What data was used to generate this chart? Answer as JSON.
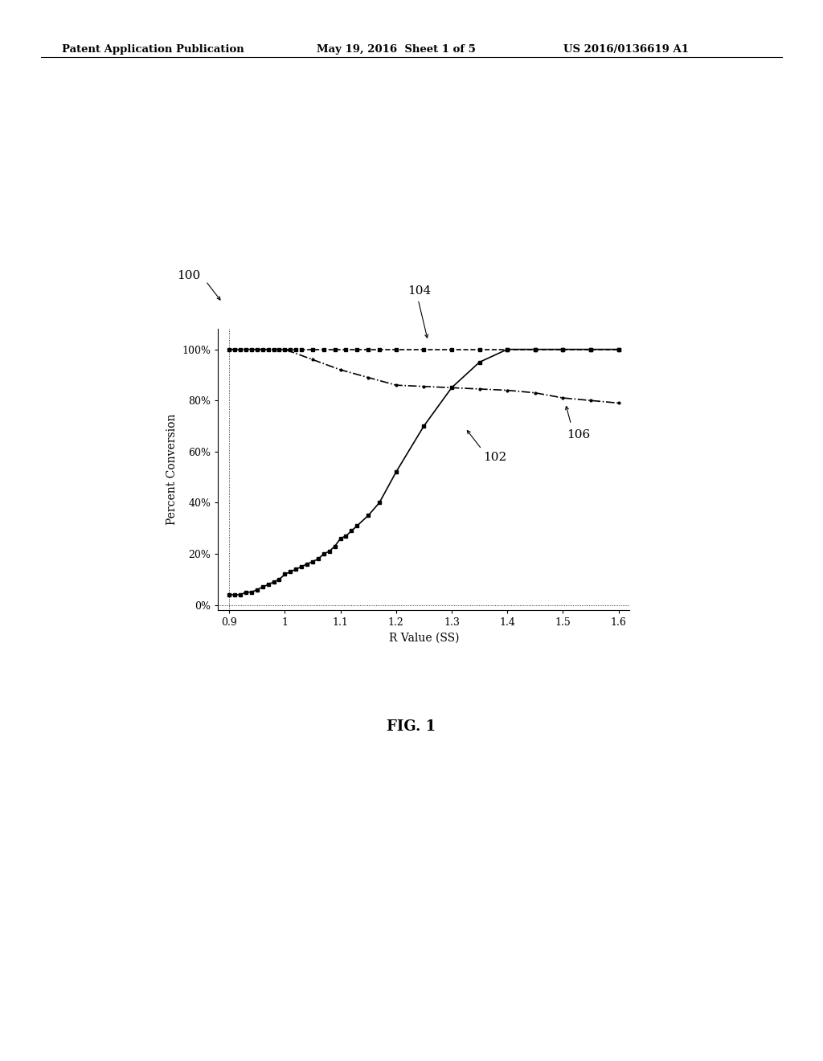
{
  "header_left": "Patent Application Publication",
  "header_center": "May 19, 2016  Sheet 1 of 5",
  "header_right": "US 2016/0136619 A1",
  "xlabel": "R Value (SS)",
  "ylabel": "Percent Conversion",
  "fig_label": "FIG. 1",
  "annotation_100": "100",
  "annotation_102": "—102",
  "annotation_104": "104",
  "annotation_106": "106",
  "yticks": [
    0.0,
    0.2,
    0.4,
    0.6,
    0.8,
    1.0
  ],
  "ytick_labels": [
    "0%",
    "20%",
    "40%",
    "60%",
    "80%",
    "100%"
  ],
  "xticks": [
    0.9,
    1.0,
    1.1,
    1.2,
    1.3,
    1.4,
    1.5,
    1.6
  ],
  "xtick_labels": [
    "0.9",
    "1",
    "1.1",
    "1.2",
    "1.3",
    "1.4",
    "1.5",
    "1.6"
  ],
  "xlim": [
    0.88,
    1.62
  ],
  "ylim": [
    -0.02,
    1.08
  ],
  "line102_x": [
    0.9,
    0.91,
    0.92,
    0.93,
    0.94,
    0.95,
    0.96,
    0.97,
    0.98,
    0.99,
    1.0,
    1.01,
    1.02,
    1.03,
    1.04,
    1.05,
    1.06,
    1.07,
    1.08,
    1.09,
    1.1,
    1.11,
    1.12,
    1.13,
    1.15,
    1.17,
    1.2,
    1.25,
    1.3,
    1.35,
    1.4,
    1.45,
    1.5,
    1.55,
    1.6
  ],
  "line102_y": [
    0.04,
    0.04,
    0.04,
    0.05,
    0.05,
    0.06,
    0.07,
    0.08,
    0.09,
    0.1,
    0.12,
    0.13,
    0.14,
    0.15,
    0.16,
    0.17,
    0.18,
    0.2,
    0.21,
    0.23,
    0.26,
    0.27,
    0.29,
    0.31,
    0.35,
    0.4,
    0.52,
    0.7,
    0.85,
    0.95,
    1.0,
    1.0,
    1.0,
    1.0,
    1.0
  ],
  "line104_x": [
    0.9,
    0.91,
    0.92,
    0.93,
    0.94,
    0.95,
    0.96,
    0.97,
    0.98,
    0.99,
    1.0,
    1.01,
    1.02,
    1.03,
    1.05,
    1.07,
    1.09,
    1.11,
    1.13,
    1.15,
    1.17,
    1.2,
    1.25,
    1.3,
    1.35,
    1.4,
    1.45,
    1.5,
    1.55,
    1.6
  ],
  "line104_y": [
    1.0,
    1.0,
    1.0,
    1.0,
    1.0,
    1.0,
    1.0,
    1.0,
    1.0,
    1.0,
    1.0,
    1.0,
    1.0,
    1.0,
    1.0,
    1.0,
    1.0,
    1.0,
    1.0,
    1.0,
    1.0,
    1.0,
    1.0,
    1.0,
    1.0,
    1.0,
    1.0,
    1.0,
    1.0,
    1.0
  ],
  "line106_x": [
    0.9,
    0.95,
    1.0,
    1.05,
    1.1,
    1.15,
    1.2,
    1.25,
    1.3,
    1.35,
    1.4,
    1.45,
    1.5,
    1.55,
    1.6
  ],
  "line106_y": [
    1.0,
    1.0,
    1.0,
    0.96,
    0.92,
    0.89,
    0.86,
    0.855,
    0.85,
    0.845,
    0.84,
    0.83,
    0.81,
    0.8,
    0.79
  ],
  "bg_color": "#ffffff",
  "line_color": "#000000",
  "header_fontsize": 9.5,
  "axis_label_fontsize": 10,
  "tick_fontsize": 9,
  "annotation_fontsize": 11,
  "fig_label_fontsize": 13
}
